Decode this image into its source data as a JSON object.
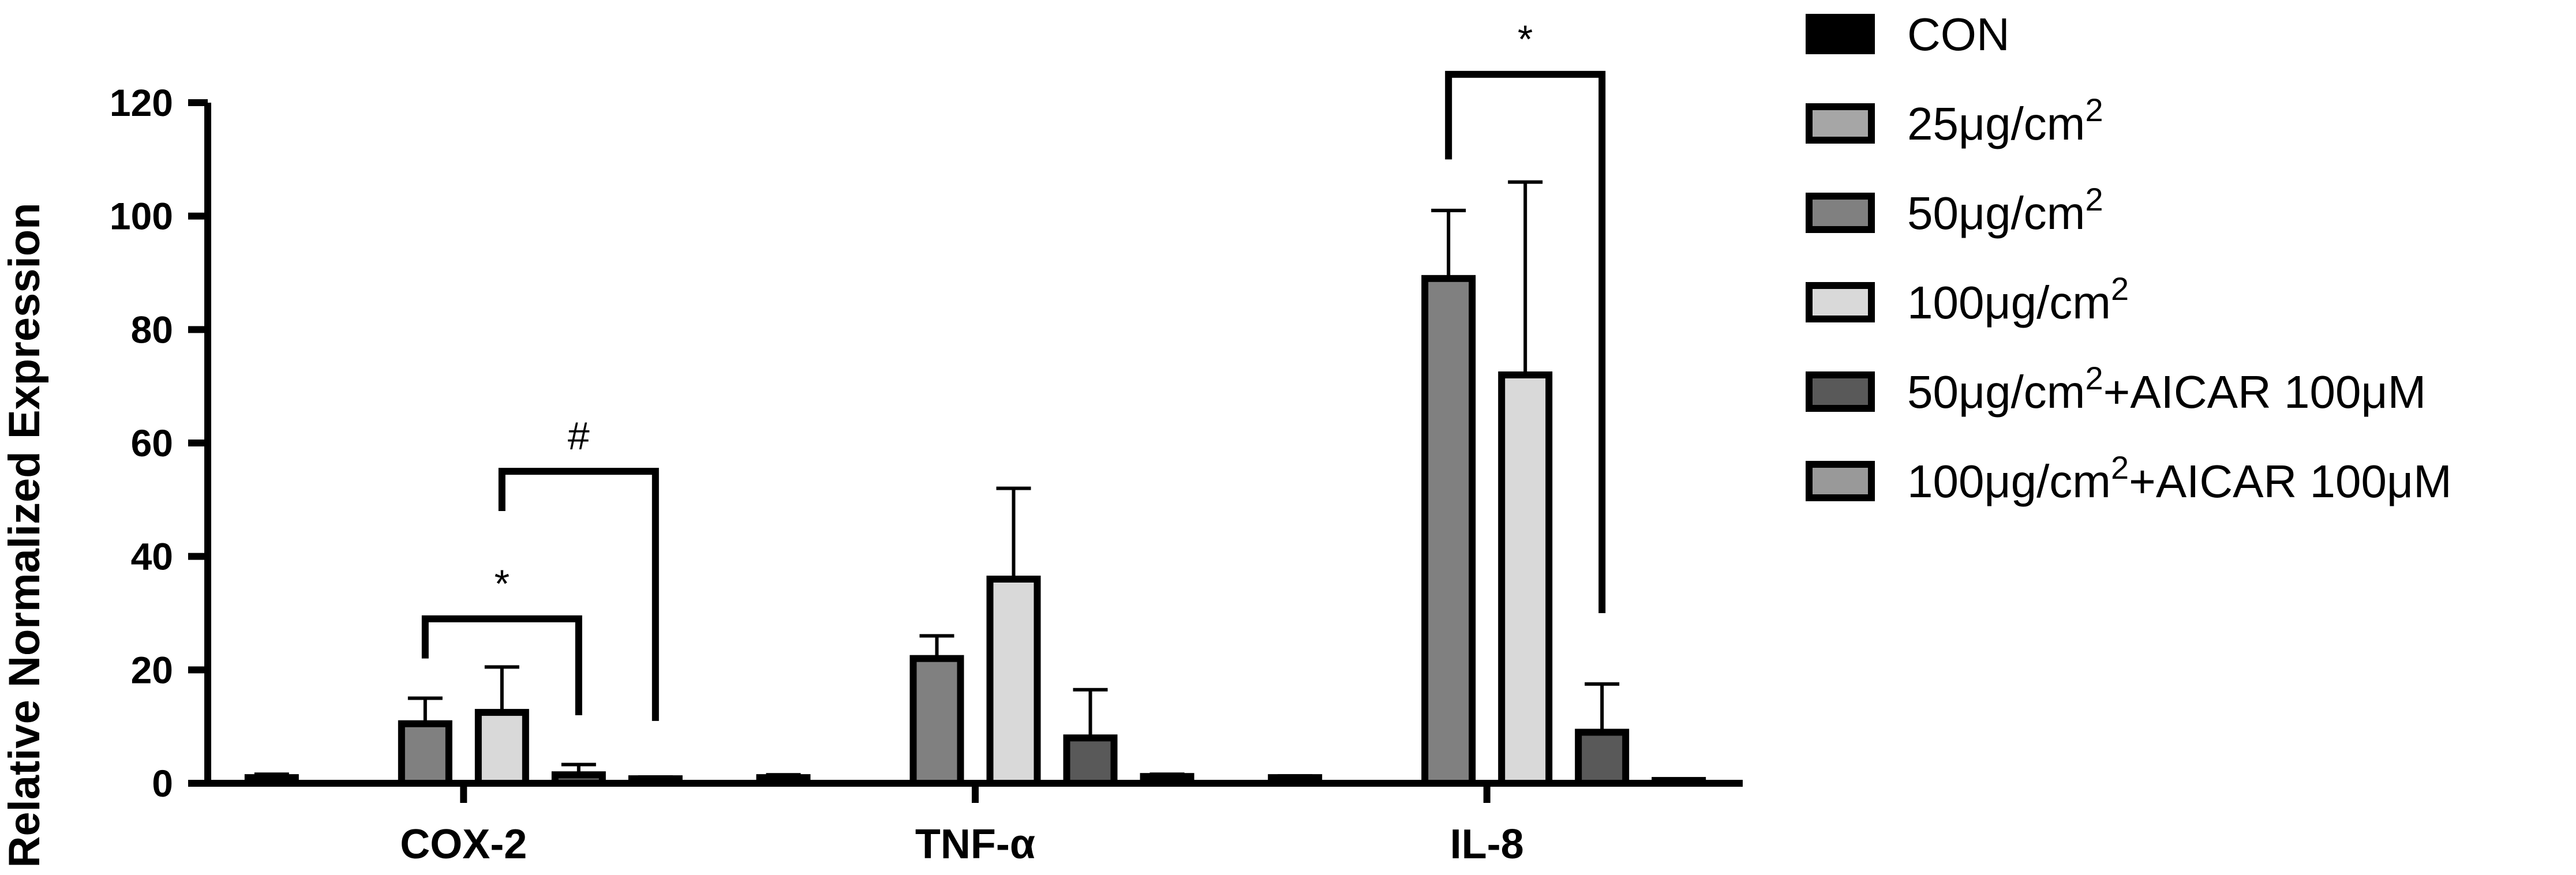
{
  "chart_data": {
    "type": "bar",
    "ylabel": "Relative Normalized Expression",
    "xlabel": "",
    "ylim": [
      0,
      120
    ],
    "yticks": [
      "0",
      "20",
      "40",
      "60",
      "80",
      "100",
      "120"
    ],
    "categories": [
      "COX-2",
      "TNF-α",
      "IL-8"
    ],
    "series": [
      {
        "name": "CON",
        "color": "#000000",
        "values": [
          1.0,
          1.0,
          1.0
        ],
        "errors": [
          0.6,
          0.5,
          0.3
        ]
      },
      {
        "name": "25μg/cm2",
        "color": "#a6a6a6",
        "values": [
          0.0,
          0.0,
          0.0
        ],
        "errors": [
          0.0,
          0.0,
          0.0
        ]
      },
      {
        "name": "50μg/cm2",
        "color": "#808080",
        "values": [
          10.5,
          22.0,
          89.0
        ],
        "errors": [
          4.5,
          4.0,
          12.0
        ]
      },
      {
        "name": "100μg/cm2",
        "color": "#d9d9d9",
        "values": [
          12.5,
          36.0,
          72.0
        ],
        "errors": [
          8.0,
          16.0,
          34.0
        ]
      },
      {
        "name": "50μg/cm2+AICAR 100μM",
        "color": "#595959",
        "values": [
          1.5,
          8.0,
          9.0
        ],
        "errors": [
          1.8,
          8.5,
          8.5
        ]
      },
      {
        "name": "100μg/cm2+AICAR 100μM",
        "color": "#999999",
        "values": [
          0.8,
          1.2,
          0.5
        ],
        "errors": [
          0.3,
          0.4,
          0.2
        ]
      }
    ],
    "annotations": [
      {
        "label": "*",
        "category": "COX-2",
        "from_series": 2,
        "to_series": 4
      },
      {
        "label": "#",
        "category": "COX-2",
        "from_series": 3,
        "to_series": 5
      },
      {
        "label": "*",
        "category": "IL-8",
        "from_series": 2,
        "to_series": 4
      }
    ],
    "legend_position": "right",
    "grid": false
  }
}
